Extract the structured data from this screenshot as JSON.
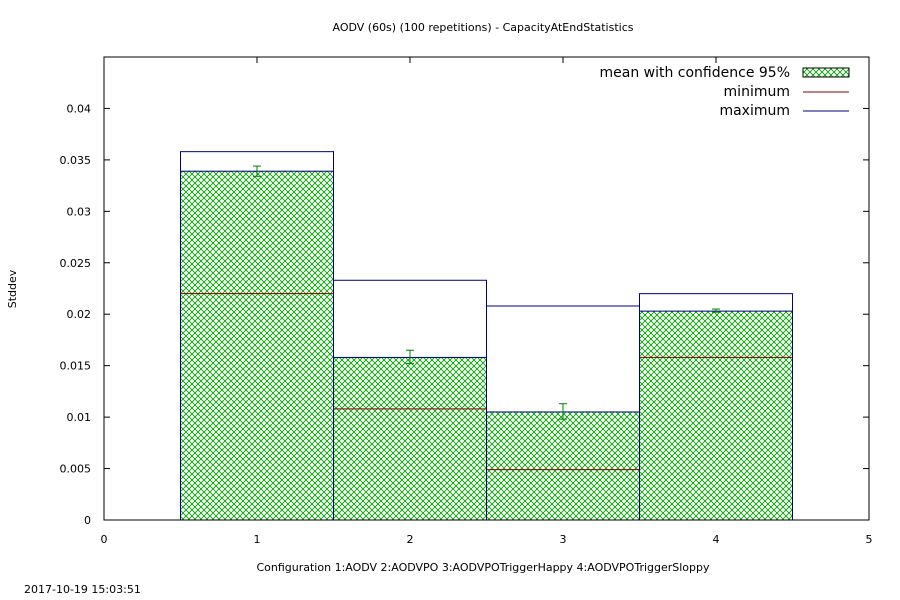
{
  "chart_data": {
    "type": "bar",
    "title": "AODV (60s) (100 repetitions) - CapacityAtEndStatistics",
    "xlabel": "Configuration 1:AODV  2:AODVPO  3:AODVPOTriggerHappy  4:AODVPOTriggerSloppy",
    "ylabel": "Stddev",
    "xlim": [
      0,
      5
    ],
    "ylim": [
      0,
      0.045
    ],
    "xticks": [
      "0",
      "1",
      "2",
      "3",
      "4",
      "5"
    ],
    "yticks": [
      "0",
      "0.005",
      "0.01",
      "0.015",
      "0.02",
      "0.025",
      "0.03",
      "0.035",
      "0.04"
    ],
    "bar_width": 1,
    "categories": [
      1,
      2,
      3,
      4
    ],
    "series": [
      {
        "name": "mean with confidence 95%",
        "values": [
          0.0339,
          0.0158,
          0.0105,
          0.0203
        ],
        "ci_low": [
          0.0334,
          0.0152,
          0.0098,
          0.0202
        ],
        "ci_high": [
          0.0344,
          0.0165,
          0.0113,
          0.0205
        ]
      },
      {
        "name": "minimum",
        "values": [
          0.022,
          0.0108,
          0.0049,
          0.0158
        ]
      },
      {
        "name": "maximum",
        "values": [
          0.0358,
          0.0233,
          0.0208,
          0.022
        ]
      }
    ],
    "legend_position": "top-right",
    "colors": {
      "mean_pattern": "#00a000",
      "minimum": "#8b0000",
      "maximum": "#000080",
      "errorbar": "#008000"
    }
  },
  "timestamp": "2017-10-19 15:03:51"
}
